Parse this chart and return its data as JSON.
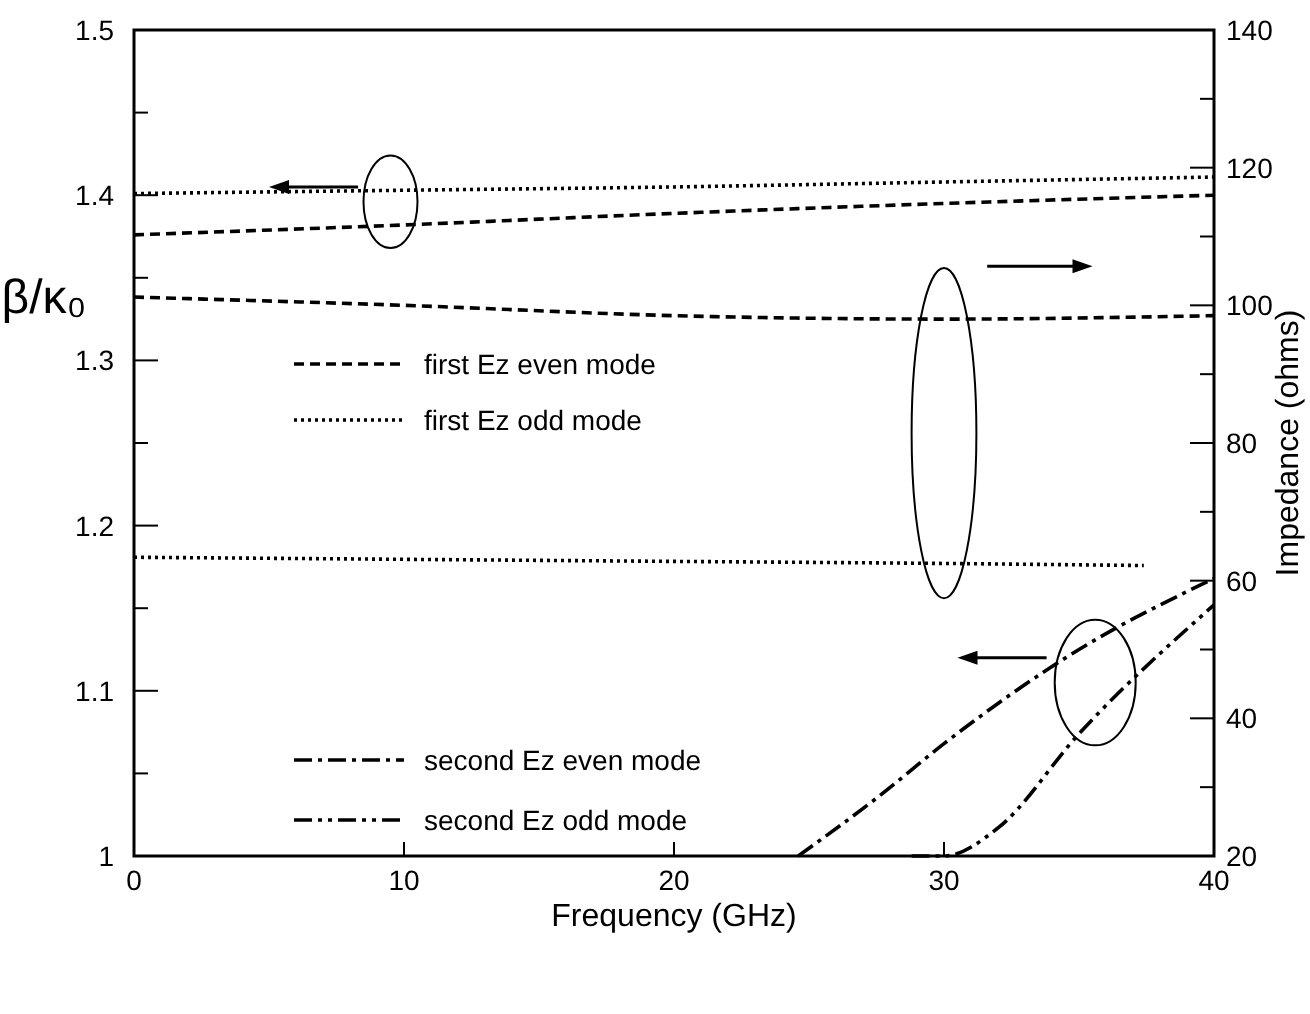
{
  "chart_data": {
    "type": "line",
    "xlabel": "Frequency (GHz)",
    "ylabel": "β/κ₀",
    "y2label": "Impedance (ohms)",
    "xlim": [
      0,
      40
    ],
    "xticks": [
      0,
      10,
      20,
      30,
      40
    ],
    "ylim": [
      1,
      1.5
    ],
    "yticks": [
      1,
      {
        "value": 1.05,
        "label": null
      },
      1.1,
      {
        "value": 1.15,
        "label": null
      },
      1.2,
      {
        "value": 1.25,
        "label": null
      },
      1.3,
      {
        "value": 1.35,
        "label": null
      },
      1.4,
      {
        "value": 1.45,
        "label": null
      },
      1.5
    ],
    "y2lim": [
      20,
      140
    ],
    "y2ticks": [
      20,
      {
        "value": 30,
        "label": null
      },
      40,
      {
        "value": 50,
        "label": null
      },
      60,
      {
        "value": 70,
        "label": null
      },
      80,
      {
        "value": 90,
        "label": null
      },
      100,
      {
        "value": 110,
        "label": null
      },
      120,
      {
        "value": 130,
        "label": null
      },
      140
    ],
    "legend": "left",
    "grid": false,
    "series": [
      {
        "name": "first Ez even mode",
        "color": "#000000",
        "line_style": "dashed",
        "x": [
          0,
          10,
          20,
          30,
          40
        ],
        "values": [
          1.376,
          1.382,
          1.389,
          1.395,
          1.4
        ]
      },
      {
        "name": "first Ez odd mode",
        "color": "#000000",
        "line_style": "dotted",
        "x": [
          0,
          10,
          20,
          30,
          40
        ],
        "values": [
          1.401,
          1.403,
          1.405,
          1.408,
          1.411
        ]
      },
      {
        "name": "second Ez even mode",
        "color": "#000000",
        "line_style": "dashdot",
        "x": [
          24.6,
          27.5,
          30,
          35,
          40
        ],
        "values": [
          1.0,
          1.035,
          1.068,
          1.125,
          1.168
        ]
      },
      {
        "name": "second Ez odd mode",
        "color": "#000000",
        "line_style": "dashdotdot",
        "x": [
          28.8,
          30,
          32,
          35,
          40
        ],
        "values": [
          1.0,
          1.0,
          1.017,
          1.074,
          1.152
        ]
      },
      {
        "color": "#000000",
        "line_style": "dashed",
        "axis": "y2",
        "x": [
          0,
          10,
          20,
          30,
          40
        ],
        "values": [
          101.2,
          100,
          98.5,
          98,
          98.5
        ]
      },
      {
        "color": "#000000",
        "line_style": "dotted",
        "axis": "y2",
        "x": [
          0,
          20,
          30,
          37.4
        ],
        "values": [
          63.4,
          62.8,
          62.5,
          62.2
        ]
      }
    ]
  }
}
